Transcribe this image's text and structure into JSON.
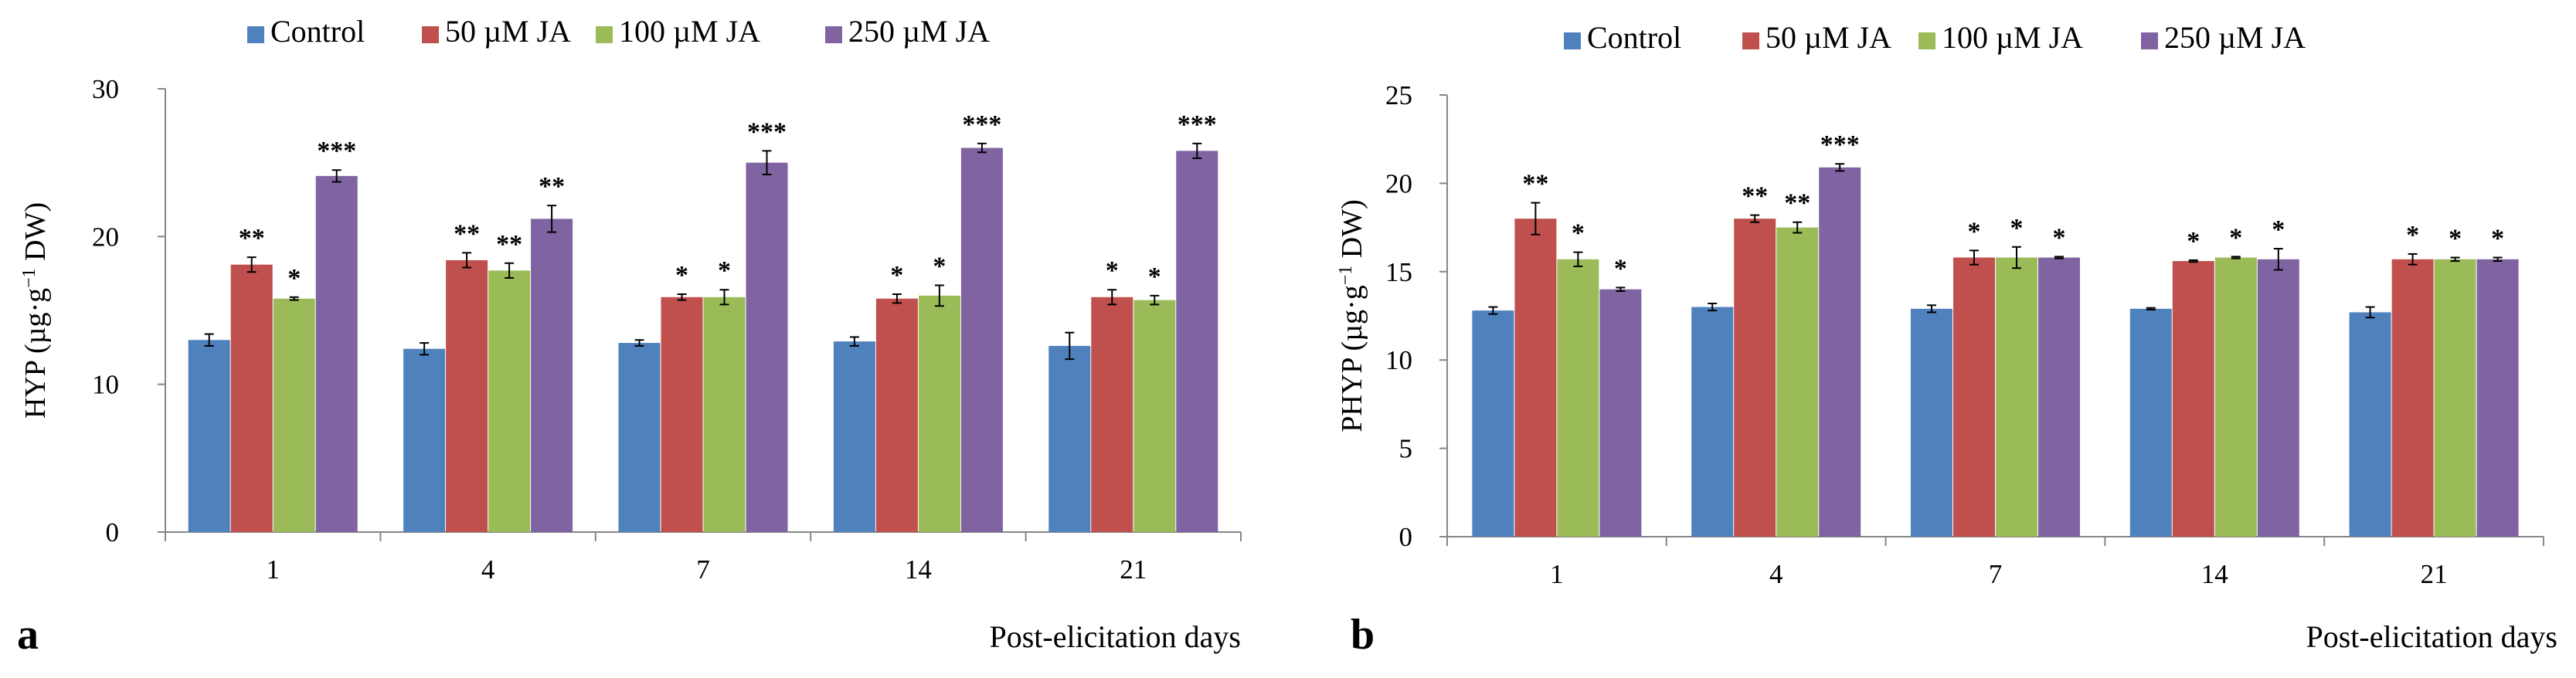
{
  "colors": {
    "Control": "#4F81BD",
    "50 µM JA": "#C0504D",
    "100 µM JA": "#9BBB59",
    "250 µM JA": "#8064A2",
    "axis": "#868686",
    "text": "#000000"
  },
  "chart_data": [
    {
      "type": "bar",
      "panel_label": "a",
      "ylabel": "HYP (µg·g⁻¹ DW)",
      "ylabel_parts": {
        "main": "HYP (µg·g",
        "sup": "−1",
        "tail": " DW)"
      },
      "xlabel": "Post-elicitation days",
      "categories": [
        "1",
        "4",
        "7",
        "14",
        "21"
      ],
      "ylim": [
        0,
        30
      ],
      "yticks": [
        0,
        10,
        20,
        30
      ],
      "grid": false,
      "legend": "top",
      "series": [
        {
          "name": "Control",
          "values": [
            13.0,
            12.4,
            12.8,
            12.9,
            12.6
          ],
          "errors": [
            0.4,
            0.4,
            0.2,
            0.3,
            0.9
          ],
          "stars": [
            "",
            "",
            "",
            "",
            ""
          ]
        },
        {
          "name": "50 µM JA",
          "values": [
            18.1,
            18.4,
            15.9,
            15.8,
            15.9
          ],
          "errors": [
            0.5,
            0.5,
            0.2,
            0.3,
            0.5
          ],
          "stars": [
            "**",
            "**",
            "*",
            "*",
            "*"
          ]
        },
        {
          "name": "100 µM JA",
          "values": [
            15.8,
            17.7,
            15.9,
            16.0,
            15.7
          ],
          "errors": [
            0.1,
            0.5,
            0.5,
            0.7,
            0.3
          ],
          "stars": [
            "*",
            "**",
            "*",
            "*",
            "*"
          ]
        },
        {
          "name": "250 µM JA",
          "values": [
            24.1,
            21.2,
            25.0,
            26.0,
            25.8
          ],
          "errors": [
            0.4,
            0.9,
            0.8,
            0.3,
            0.5
          ],
          "stars": [
            "***",
            "**",
            "***",
            "***",
            "***"
          ]
        }
      ]
    },
    {
      "type": "bar",
      "panel_label": "b",
      "ylabel": "PHYP (µg·g⁻¹ DW)",
      "ylabel_parts": {
        "main": "PHYP (µg·g",
        "sup": "−1",
        "tail": " DW)"
      },
      "xlabel": "Post-elicitation days",
      "categories": [
        "1",
        "4",
        "7",
        "14",
        "21"
      ],
      "ylim": [
        0,
        25
      ],
      "yticks": [
        0,
        5,
        10,
        15,
        20,
        25
      ],
      "grid": false,
      "legend": "top",
      "series": [
        {
          "name": "Control",
          "values": [
            12.8,
            13.0,
            12.9,
            12.9,
            12.7
          ],
          "errors": [
            0.2,
            0.2,
            0.2,
            0.05,
            0.3
          ],
          "stars": [
            "",
            "",
            "",
            "",
            ""
          ]
        },
        {
          "name": "50 µM JA",
          "values": [
            18.0,
            18.0,
            15.8,
            15.6,
            15.7
          ],
          "errors": [
            0.9,
            0.2,
            0.4,
            0.05,
            0.3
          ],
          "stars": [
            "**",
            "**",
            "*",
            "*",
            "*"
          ]
        },
        {
          "name": "100 µM JA",
          "values": [
            15.7,
            17.5,
            15.8,
            15.8,
            15.7
          ],
          "errors": [
            0.4,
            0.3,
            0.6,
            0.05,
            0.1
          ],
          "stars": [
            "*",
            "**",
            "*",
            "*",
            "*"
          ]
        },
        {
          "name": "250 µM JA",
          "values": [
            14.0,
            20.9,
            15.8,
            15.7,
            15.7
          ],
          "errors": [
            0.1,
            0.2,
            0.05,
            0.6,
            0.1
          ],
          "stars": [
            "*",
            "***",
            "*",
            "*",
            "*"
          ]
        }
      ]
    }
  ]
}
